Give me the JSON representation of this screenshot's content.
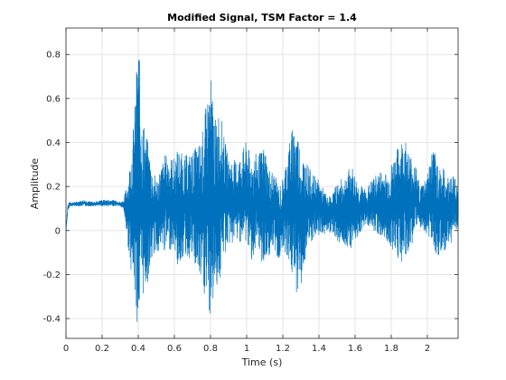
{
  "chart_data": {
    "type": "line",
    "title": "Modified Signal, TSM Factor = 1.4",
    "xlabel": "Time (s)",
    "ylabel": "Amplitude",
    "xlim": [
      0,
      2.17
    ],
    "ylim": [
      -0.49,
      0.92
    ],
    "x_ticks": [
      0,
      0.2,
      0.4,
      0.6,
      0.8,
      1,
      1.2,
      1.4,
      1.6,
      1.8,
      2
    ],
    "x_tick_labels": [
      "0",
      "0.2",
      "0.4",
      "0.6",
      "0.8",
      "1",
      "1.2",
      "1.4",
      "1.6",
      "1.8",
      "2"
    ],
    "y_ticks": [
      -0.4,
      -0.2,
      0,
      0.2,
      0.4,
      0.6,
      0.8
    ],
    "y_tick_labels": [
      "-0.4",
      "-0.2",
      "0",
      "0.2",
      "0.4",
      "0.6",
      "0.8"
    ],
    "grid": true,
    "line_color": "#0072bd",
    "series": [
      {
        "x": [
          0,
          0.01,
          0.02,
          0.05,
          0.1,
          0.15,
          0.2,
          0.25,
          0.28,
          0.3,
          0.32,
          0.35,
          0.38,
          0.4,
          0.42,
          0.45,
          0.48,
          0.5,
          0.55,
          0.6,
          0.62,
          0.65,
          0.7,
          0.75,
          0.8,
          0.83,
          0.85,
          0.87,
          0.9,
          0.95,
          1.0,
          1.02,
          1.05,
          1.08,
          1.1,
          1.12,
          1.15,
          1.18,
          1.2,
          1.24,
          1.27,
          1.3,
          1.33,
          1.36,
          1.4,
          1.45,
          1.48,
          1.5,
          1.52,
          1.55,
          1.58,
          1.62,
          1.66,
          1.7,
          1.75,
          1.78,
          1.82,
          1.85,
          1.87,
          1.9,
          1.93,
          1.96,
          2.0,
          2.03,
          2.06,
          2.1,
          2.13,
          2.15,
          2.17
        ],
        "upper": [
          0,
          0.12,
          0.13,
          0.13,
          0.14,
          0.13,
          0.14,
          0.14,
          0.14,
          0.13,
          0.14,
          0.28,
          0.55,
          0.92,
          0.55,
          0.42,
          0.28,
          0.24,
          0.35,
          0.33,
          0.38,
          0.34,
          0.36,
          0.42,
          0.72,
          0.49,
          0.58,
          0.45,
          0.33,
          0.32,
          0.41,
          0.34,
          0.35,
          0.36,
          0.4,
          0.29,
          0.27,
          0.2,
          0.24,
          0.43,
          0.52,
          0.37,
          0.32,
          0.26,
          0.23,
          0.15,
          0.18,
          0.22,
          0.23,
          0.26,
          0.3,
          0.21,
          0.19,
          0.24,
          0.28,
          0.26,
          0.35,
          0.4,
          0.44,
          0.36,
          0.32,
          0.2,
          0.27,
          0.38,
          0.32,
          0.27,
          0.24,
          0.27,
          0.18
        ],
        "lower": [
          0,
          0.08,
          0.11,
          0.11,
          0.11,
          0.11,
          0.11,
          0.11,
          0.11,
          0.11,
          0.09,
          -0.12,
          -0.3,
          -0.48,
          -0.32,
          -0.25,
          -0.12,
          -0.1,
          -0.1,
          -0.08,
          -0.18,
          -0.12,
          -0.14,
          -0.26,
          -0.42,
          -0.25,
          -0.26,
          -0.13,
          -0.07,
          -0.05,
          -0.06,
          -0.14,
          -0.12,
          -0.14,
          -0.18,
          -0.12,
          -0.1,
          -0.14,
          -0.07,
          -0.17,
          -0.29,
          -0.26,
          -0.12,
          -0.06,
          -0.03,
          -0.01,
          -0.01,
          -0.05,
          -0.06,
          -0.07,
          -0.08,
          -0.02,
          0.03,
          0.0,
          -0.04,
          -0.06,
          -0.1,
          -0.15,
          -0.16,
          -0.1,
          -0.02,
          0.0,
          -0.02,
          -0.06,
          -0.14,
          -0.1,
          -0.06,
          -0.03,
          0.02
        ]
      }
    ]
  }
}
